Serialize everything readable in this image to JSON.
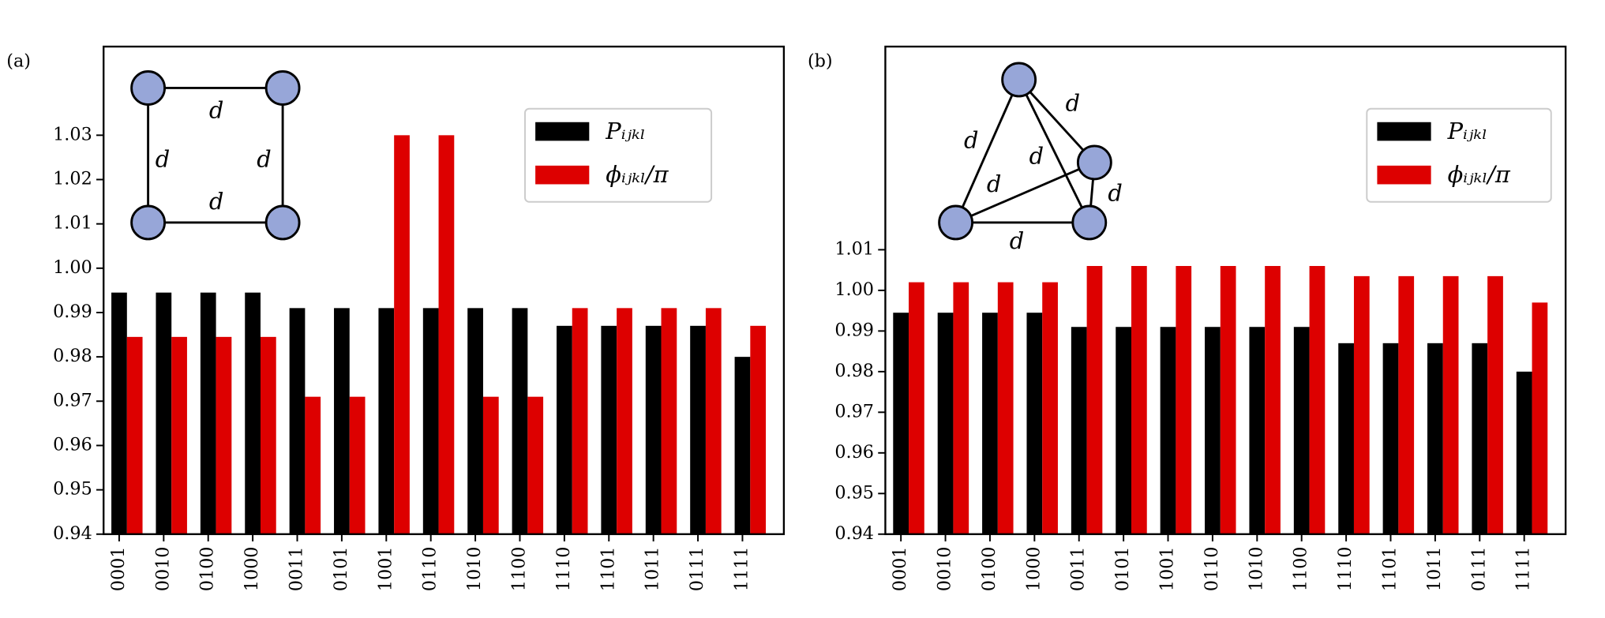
{
  "chart_data": [
    {
      "type": "bar",
      "panel_label": "(a)",
      "categories": [
        "0001",
        "0010",
        "0100",
        "1000",
        "0011",
        "0101",
        "1001",
        "0110",
        "1010",
        "1100",
        "1110",
        "1101",
        "1011",
        "0111",
        "1111"
      ],
      "series": [
        {
          "name": "Pᵢⱼₖₗ",
          "color": "#000000",
          "values": [
            0.9945,
            0.9945,
            0.9945,
            0.9945,
            0.991,
            0.991,
            0.991,
            0.991,
            0.991,
            0.991,
            0.987,
            0.987,
            0.987,
            0.987,
            0.98
          ]
        },
        {
          "name": "ϕᵢⱼₖₗ/π",
          "color": "#dd0000",
          "values": [
            0.9845,
            0.9845,
            0.9845,
            0.9845,
            0.971,
            0.971,
            1.03,
            1.03,
            0.971,
            0.971,
            0.991,
            0.991,
            0.991,
            0.991,
            0.987
          ]
        }
      ],
      "ylim": [
        0.94,
        1.05
      ],
      "yticks": [
        0.94,
        0.95,
        0.96,
        0.97,
        0.98,
        0.99,
        {
          "value": 1.0,
          "label": "1.00"
        },
        1.01,
        1.02,
        1.03
      ],
      "legend": "upper right",
      "inset": {
        "shape": "square",
        "edge_labels": [
          "d",
          "d",
          "d",
          "d"
        ]
      }
    },
    {
      "type": "bar",
      "panel_label": "(b)",
      "categories": [
        "0001",
        "0010",
        "0100",
        "1000",
        "0011",
        "0101",
        "1001",
        "0110",
        "1010",
        "1100",
        "1110",
        "1101",
        "1011",
        "0111",
        "1111"
      ],
      "series": [
        {
          "name": "Pᵢⱼₖₗ",
          "color": "#000000",
          "values": [
            0.9945,
            0.9945,
            0.9945,
            0.9945,
            0.991,
            0.991,
            0.991,
            0.991,
            0.991,
            0.991,
            0.987,
            0.987,
            0.987,
            0.987,
            0.98
          ]
        },
        {
          "name": "ϕᵢⱼₖₗ/π",
          "color": "#dd0000",
          "values": [
            1.002,
            1.002,
            1.002,
            1.002,
            1.006,
            1.006,
            1.006,
            1.006,
            1.006,
            1.006,
            1.0035,
            1.0035,
            1.0035,
            1.0035,
            0.997
          ]
        }
      ],
      "ylim": [
        0.94,
        1.06
      ],
      "yticks": [
        0.94,
        0.95,
        0.96,
        0.97,
        0.98,
        0.99,
        {
          "value": 1.0,
          "label": "1.00"
        },
        1.01
      ],
      "legend": "upper right",
      "inset": {
        "shape": "tetrahedron",
        "edge_labels": [
          "d",
          "d",
          "d",
          "d",
          "d",
          "d"
        ]
      }
    }
  ]
}
